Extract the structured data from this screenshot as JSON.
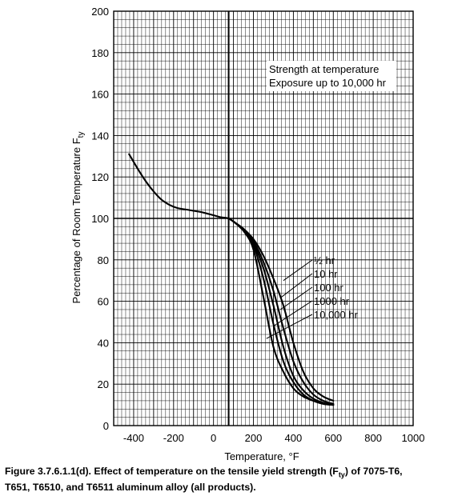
{
  "chart_data": {
    "type": "line",
    "xlabel": "Temperature, °F",
    "ylabel": "Percentage of Room Temperature F",
    "ylabel_sub": "ty",
    "xlim": [
      -500,
      1000
    ],
    "ylim": [
      0,
      200
    ],
    "xticks": [
      -400,
      -200,
      0,
      200,
      400,
      600,
      800,
      1000
    ],
    "yticks": [
      0,
      20,
      40,
      60,
      80,
      100,
      120,
      140,
      160,
      180,
      200
    ],
    "grid": true,
    "annotations": [
      "Strength at temperature",
      "Exposure up to 10,000 hr"
    ],
    "series": [
      {
        "name": "½ hr",
        "points": [
          [
            -423,
            131
          ],
          [
            -380,
            124
          ],
          [
            -340,
            118
          ],
          [
            -300,
            113
          ],
          [
            -260,
            109
          ],
          [
            -220,
            106.5
          ],
          [
            -180,
            105
          ],
          [
            -120,
            104
          ],
          [
            -60,
            103
          ],
          [
            0,
            101.5
          ],
          [
            40,
            100.5
          ],
          [
            75,
            100
          ],
          [
            100,
            98.5
          ],
          [
            150,
            95
          ],
          [
            200,
            90
          ],
          [
            250,
            82
          ],
          [
            300,
            71
          ],
          [
            350,
            58
          ],
          [
            400,
            40
          ],
          [
            450,
            26
          ],
          [
            500,
            18
          ],
          [
            550,
            14
          ],
          [
            600,
            12
          ]
        ]
      },
      {
        "name": "10 hr",
        "points": [
          [
            75,
            100
          ],
          [
            100,
            98.5
          ],
          [
            150,
            94.5
          ],
          [
            200,
            89
          ],
          [
            250,
            79
          ],
          [
            300,
            65
          ],
          [
            350,
            47
          ],
          [
            400,
            31
          ],
          [
            450,
            21
          ],
          [
            500,
            15
          ],
          [
            550,
            12
          ],
          [
            600,
            10.5
          ]
        ]
      },
      {
        "name": "100 hr",
        "points": [
          [
            75,
            100
          ],
          [
            100,
            98.5
          ],
          [
            150,
            94.5
          ],
          [
            200,
            88
          ],
          [
            250,
            76
          ],
          [
            300,
            58
          ],
          [
            350,
            38
          ],
          [
            400,
            24
          ],
          [
            450,
            17
          ],
          [
            500,
            13
          ],
          [
            550,
            11
          ],
          [
            600,
            10
          ]
        ]
      },
      {
        "name": "1000 hr",
        "points": [
          [
            75,
            100
          ],
          [
            100,
            98.5
          ],
          [
            150,
            94
          ],
          [
            200,
            87
          ],
          [
            250,
            71
          ],
          [
            300,
            49
          ],
          [
            350,
            31
          ],
          [
            400,
            21
          ],
          [
            450,
            15
          ],
          [
            500,
            12
          ],
          [
            550,
            10.5
          ],
          [
            600,
            10
          ]
        ]
      },
      {
        "name": "10,000 hr",
        "points": [
          [
            75,
            100
          ],
          [
            100,
            98.5
          ],
          [
            150,
            94
          ],
          [
            200,
            85
          ],
          [
            250,
            62
          ],
          [
            300,
            38
          ],
          [
            350,
            26
          ],
          [
            400,
            18
          ],
          [
            450,
            14
          ],
          [
            500,
            12
          ],
          [
            550,
            10.5
          ],
          [
            600,
            10
          ]
        ]
      }
    ],
    "leader_targets": [
      [
        350,
        70
      ],
      [
        340,
        62
      ],
      [
        335,
        56
      ],
      [
        300,
        48
      ],
      [
        265,
        42
      ]
    ]
  },
  "caption": {
    "line1": "Figure 3.7.6.1.1(d).  Effect of temperature on the tensile yield strength (F",
    "sub": "ty",
    "line1_rest": ") of 7075-T6,",
    "line2": "T651, T6510, and T6511 aluminum alloy (all products)."
  }
}
